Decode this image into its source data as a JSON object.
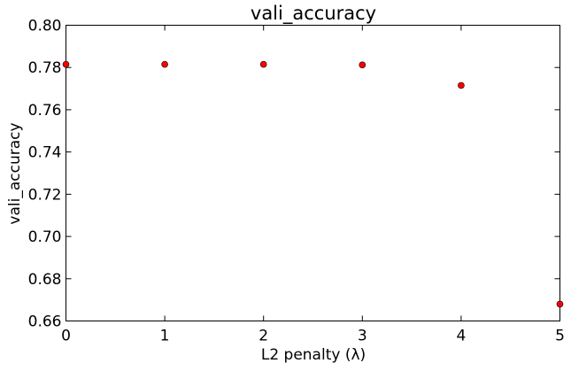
{
  "chart_data": {
    "type": "scatter",
    "title": "vali_accuracy",
    "xlabel": "L2 penalty (λ)",
    "ylabel": "vali_accuracy",
    "xlim": [
      0,
      5
    ],
    "ylim": [
      0.66,
      0.8
    ],
    "xticks": [
      0,
      1,
      2,
      3,
      4,
      5
    ],
    "xtick_labels": [
      "0",
      "1",
      "2",
      "3",
      "4",
      "5"
    ],
    "yticks": [
      0.66,
      0.68,
      0.7,
      0.72,
      0.74,
      0.76,
      0.78,
      0.8
    ],
    "ytick_labels": [
      "0.66",
      "0.68",
      "0.70",
      "0.72",
      "0.74",
      "0.76",
      "0.78",
      "0.80"
    ],
    "grid": false,
    "marker_color": "#ff0000",
    "series": [
      {
        "x": [
          0,
          1,
          2,
          3,
          4,
          5
        ],
        "y": [
          0.7815,
          0.7815,
          0.7815,
          0.7812,
          0.7715,
          0.668
        ]
      }
    ]
  }
}
